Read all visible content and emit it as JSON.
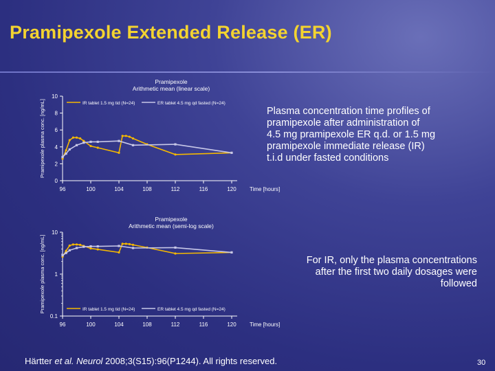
{
  "slide": {
    "title": "Pramipexole Extended Release (ER)",
    "page_number": "30",
    "citation": {
      "authors": "Härtter ",
      "etal": "et al. Neurol",
      "rest": " 2008;3(S15):96(P1244). All rights reserved."
    },
    "description_top": [
      "Plasma concentration time profiles of",
      "pramipexole after administration of",
      "4.5 mg pramipexole ER q.d. or 1.5 mg",
      "pramipexole immediate release (IR)",
      "t.i.d under fasted conditions"
    ],
    "description_bottom": [
      "For IR, only the plasma concentrations",
      "after the first two daily dosages were",
      "followed"
    ]
  },
  "colors": {
    "ir_series": "#f5b800",
    "er_series": "#c8c8e8",
    "axis": "#ffffff",
    "title": "#f3d330"
  },
  "chart_data": [
    {
      "type": "line",
      "title": "Pramipexole",
      "subtitle": "Arithmetic mean (linear scale)",
      "ylabel": "Pramipexole plasma conc. [ng/mL]",
      "xlabel": "Time [hours]",
      "xlim": [
        96,
        120
      ],
      "ylim": [
        0,
        10
      ],
      "xticks": [
        96,
        100,
        104,
        108,
        112,
        116,
        120
      ],
      "yticks": [
        0,
        2,
        4,
        6,
        8,
        10
      ],
      "legend_position": "top",
      "series": [
        {
          "name": "IR tablet 1.5 mg tid (N=24)",
          "x": [
            96,
            96.5,
            97,
            97.5,
            98,
            98.5,
            99,
            100,
            101,
            104,
            104.5,
            105,
            105.5,
            106,
            108,
            112,
            120
          ],
          "y": [
            2.6,
            3.6,
            4.8,
            5.1,
            5.1,
            5.0,
            4.7,
            4.1,
            3.9,
            3.3,
            5.3,
            5.3,
            5.2,
            5.0,
            4.3,
            3.1,
            3.3
          ]
        },
        {
          "name": "ER tablet 4.5 mg qd fasted (N=24)",
          "x": [
            96,
            96.5,
            97,
            98,
            99,
            100,
            101,
            104,
            106,
            112,
            120
          ],
          "y": [
            2.8,
            3.2,
            3.7,
            4.2,
            4.5,
            4.6,
            4.6,
            4.7,
            4.2,
            4.3,
            3.3
          ]
        }
      ]
    },
    {
      "type": "line",
      "title": "Pramipexole",
      "subtitle": "Arithmetic mean (semi-log scale)",
      "ylabel": "Pramipexole plasma conc. [ng/mL]",
      "xlabel": "Time [hours]",
      "xlim": [
        96,
        120
      ],
      "ylim": [
        0.1,
        10
      ],
      "yscale": "log",
      "xticks": [
        96,
        100,
        104,
        108,
        112,
        116,
        120
      ],
      "yticks": [
        0.1,
        1,
        10
      ],
      "legend_position": "bottom",
      "series": [
        {
          "name": "IR tablet 1.5 mg tid (N=24)",
          "x": [
            96,
            96.5,
            97,
            97.5,
            98,
            98.5,
            99,
            100,
            101,
            104,
            104.5,
            105,
            105.5,
            106,
            108,
            112,
            120
          ],
          "y": [
            2.6,
            3.6,
            4.8,
            5.1,
            5.1,
            5.0,
            4.7,
            4.1,
            3.9,
            3.3,
            5.3,
            5.3,
            5.2,
            5.0,
            4.3,
            3.1,
            3.3
          ]
        },
        {
          "name": "ER tablet 4.5 mg qd fasted (N=24)",
          "x": [
            96,
            96.5,
            97,
            98,
            99,
            100,
            101,
            104,
            106,
            112,
            120
          ],
          "y": [
            2.8,
            3.2,
            3.7,
            4.2,
            4.5,
            4.6,
            4.6,
            4.7,
            4.2,
            4.3,
            3.3
          ]
        }
      ]
    }
  ]
}
